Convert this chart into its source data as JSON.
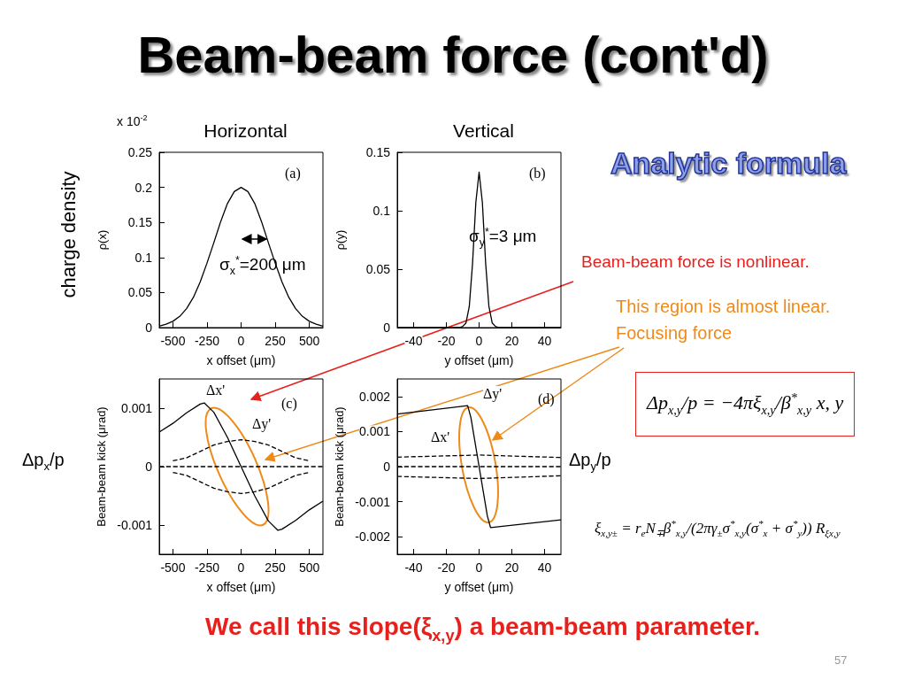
{
  "chart_data": [
    {
      "type": "line",
      "title": "Horizontal",
      "xlabel": "x offset (μm)",
      "ylabel": "ρ(x)",
      "marker": "none",
      "x": [
        -600,
        -550,
        -500,
        -450,
        -400,
        -350,
        -300,
        -250,
        -200,
        -150,
        -100,
        -50,
        0,
        50,
        100,
        150,
        200,
        250,
        300,
        350,
        400,
        450,
        500,
        550,
        600
      ],
      "series": [
        {
          "color": "#000000",
          "values": [
            0.002,
            0.005,
            0.009,
            0.016,
            0.027,
            0.043,
            0.065,
            0.092,
            0.121,
            0.151,
            0.177,
            0.194,
            0.2,
            0.194,
            0.177,
            0.151,
            0.121,
            0.092,
            0.065,
            0.043,
            0.027,
            0.016,
            0.009,
            0.005,
            0.002
          ]
        }
      ],
      "xlim": [
        -600,
        600
      ],
      "xticks": [
        -500,
        -250,
        0,
        250,
        500
      ],
      "ylim": [
        0,
        0.25
      ],
      "yticks": [
        0,
        0.05,
        0.1,
        0.15,
        0.2,
        0.25
      ],
      "annotations": [
        "x 10$^{-2}$",
        "(a)",
        "σ$_{x}$$^{*}$=200 μm"
      ]
    },
    {
      "type": "line",
      "title": "Vertical",
      "xlabel": "y offset (μm)",
      "ylabel": "ρ(y)",
      "marker": "none",
      "x": [
        -50,
        -12,
        -10,
        -8,
        -6,
        -4,
        -2,
        0,
        2,
        4,
        6,
        8,
        10,
        12,
        50
      ],
      "series": [
        {
          "color": "#000000",
          "values": [
            0,
            0,
            0.001,
            0.004,
            0.018,
            0.055,
            0.107,
            0.133,
            0.107,
            0.055,
            0.018,
            0.004,
            0.001,
            0,
            0
          ]
        }
      ],
      "xlim": [
        -50,
        50
      ],
      "xticks": [
        -40,
        -20,
        0,
        20,
        40
      ],
      "ylim": [
        0,
        0.15
      ],
      "yticks": [
        0,
        0.05,
        0.1,
        0.15
      ],
      "annotations": [
        "(b)",
        "σ$_{y}$$^{*}$=3 μm"
      ]
    },
    {
      "type": "line",
      "xlabel": "x offset (μm)",
      "ylabel": "Beam-beam kick (μrad)",
      "marker": "none",
      "series": [
        {
          "color": "#000000",
          "x": [
            -600,
            -500,
            -400,
            -300,
            -270,
            -200,
            -100,
            0,
            100,
            200,
            270,
            300,
            400,
            500,
            600
          ],
          "values": [
            0.00059,
            0.00074,
            0.00092,
            0.00107,
            0.00109,
            0.00093,
            0.0005,
            0,
            -0.0005,
            -0.00093,
            -0.00109,
            -0.00107,
            -0.00092,
            -0.00074,
            -0.00059
          ]
        },
        {
          "color": "#000000",
          "line_style": "dashed",
          "x": [
            -500,
            -400,
            -300,
            -200,
            -100,
            0,
            100,
            200,
            300,
            400,
            500
          ],
          "values": [
            0.0001,
            0.00015,
            0.00026,
            0.00037,
            0.00043,
            0.00046,
            0.00043,
            0.00037,
            0.00026,
            0.00015,
            0.0001
          ]
        },
        {
          "color": "#000000",
          "line_style": "dashed",
          "x": [
            -600,
            600
          ],
          "values": [
            0,
            0
          ]
        },
        {
          "color": "#000000",
          "line_style": "dashed",
          "x": [
            -500,
            -400,
            -300,
            -200,
            -100,
            0,
            100,
            200,
            300,
            400,
            500
          ],
          "values": [
            -0.0001,
            -0.00015,
            -0.00026,
            -0.00037,
            -0.00043,
            -0.00046,
            -0.00043,
            -0.00037,
            -0.00026,
            -0.00015,
            -0.0001
          ]
        }
      ],
      "xlim": [
        -600,
        600
      ],
      "xticks": [
        -500,
        -250,
        0,
        250,
        500
      ],
      "ylim": [
        -0.0015,
        0.0015
      ],
      "yticks": [
        -0.001,
        0,
        0.001
      ],
      "annotations": [
        "Δx'",
        "Δy'",
        "(c)"
      ]
    },
    {
      "type": "line",
      "xlabel": "y offset (μm)",
      "ylabel": "Beam-beam kick (μrad)",
      "marker": "none",
      "series": [
        {
          "color": "#000000",
          "x": [
            -50,
            -7,
            -5,
            0,
            5,
            7,
            50
          ],
          "values": [
            0.0015,
            0.00174,
            0.0014,
            0,
            -0.0014,
            -0.00174,
            -0.00152
          ]
        },
        {
          "color": "#000000",
          "line_style": "dashed",
          "x": [
            -50,
            0,
            50
          ],
          "values": [
            0.00027,
            0.00033,
            0.00026
          ]
        },
        {
          "color": "#000000",
          "line_style": "dashed",
          "x": [
            -50,
            50
          ],
          "values": [
            0,
            0
          ]
        },
        {
          "color": "#000000",
          "line_style": "dashed",
          "x": [
            -50,
            0,
            50
          ],
          "values": [
            -0.00028,
            -0.00034,
            -0.00026
          ]
        }
      ],
      "xlim": [
        -50,
        50
      ],
      "xticks": [
        -40,
        -20,
        0,
        20,
        40
      ],
      "ylim": [
        -0.0025,
        0.0025
      ],
      "yticks": [
        -0.002,
        -0.001,
        0,
        0.001,
        0.002
      ],
      "annotations": [
        "Δy'",
        "(d)",
        "Δx'"
      ]
    },
    {
      "type": "other",
      "title": "Beam-beam force (cont'd)",
      "annotations": [
        "Analytic formula",
        "charge density",
        "Δp$_{x}$/p",
        "Δp$_{y}$/p",
        "Beam-beam force is nonlinear.",
        "This region is almost linear.",
        "Focusing force",
        "Δp$_{x,y}$/p = −4πξ$_{x,y}$/β$^{*}$$_{x,y}$ x, y",
        "ξ$_{x,y±}$ = r$_{e}$N$_{∓}$β$^{*}$$_{x,y}$/(2πγ$_{±}$σ$^{*}$$_{x,y}$(σ$^{*}$$_{x}$ + σ$^{*}$$_{y}$)) R$_{ξx,y}$",
        "We call this slope(ξ$_{x,y}$) a beam-beam parameter.",
        "57"
      ]
    }
  ]
}
